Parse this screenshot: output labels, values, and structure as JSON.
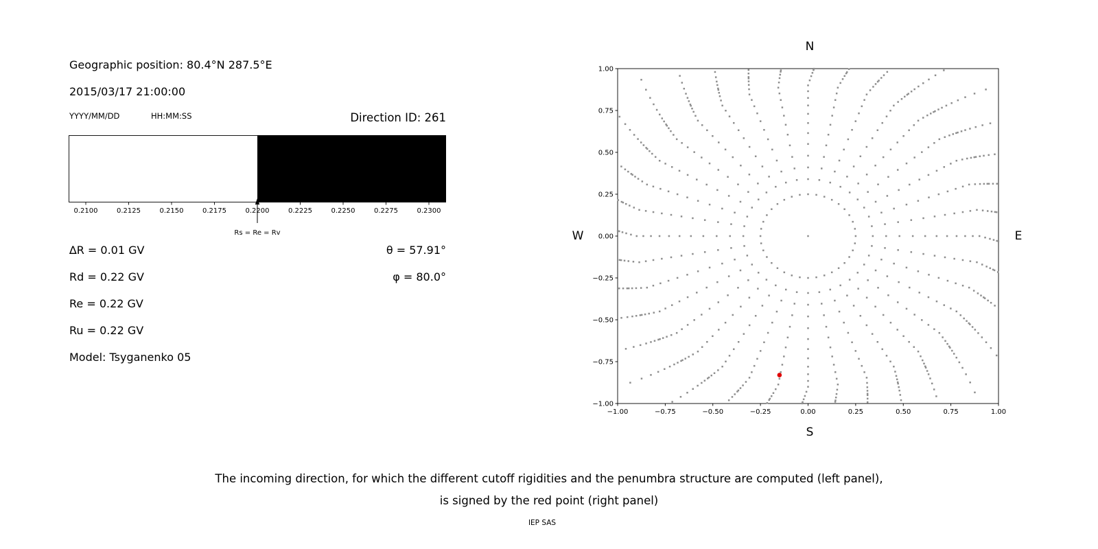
{
  "left_panel": {
    "geo_position": "Geographic position: 80.4°N 287.5°E",
    "datetime": "2015/03/17 21:00:00",
    "date_format_label": "YYYY/MM/DD",
    "time_format_label": "HH:MM:SS",
    "direction_id_label": "Direction ID: 261",
    "params": [
      "∆R = 0.01 GV",
      "Rd = 0.22 GV",
      "Re = 0.22 GV",
      "Ru = 0.22 GV",
      "Model: Tsyganenko 05"
    ],
    "theta_label": "θ = 57.91°",
    "phi_label": "φ = 80.0°"
  },
  "caption": {
    "line1": "The incoming direction, for which the different cutoff rigidities and the penumbra structure are computed (left panel),",
    "line2": "is signed by the red point (right panel)",
    "credit": "IEP SAS"
  },
  "chart_data": [
    {
      "type": "bar",
      "name": "penumbra-structure",
      "x_range": [
        0.209,
        0.231
      ],
      "ticks": [
        0.21,
        0.2125,
        0.215,
        0.2175,
        0.22,
        0.2225,
        0.225,
        0.2275,
        0.23
      ],
      "tick_labels": [
        "0.2100",
        "0.2125",
        "0.2150",
        "0.2175",
        "0.2200",
        "0.2225",
        "0.2250",
        "0.2275",
        "0.2300"
      ],
      "white_region": [
        0.209,
        0.22
      ],
      "black_region": [
        0.22,
        0.231
      ],
      "annotation": {
        "label": "Rs = Re = Rv",
        "x": 0.22
      },
      "colors": {
        "allowed": "#ffffff",
        "forbidden": "#000000"
      }
    },
    {
      "type": "scatter",
      "name": "asymptotic-directions",
      "compass": {
        "top": "N",
        "bottom": "S",
        "left": "W",
        "right": "E"
      },
      "xlim": [
        -1,
        1
      ],
      "ylim": [
        -1,
        1
      ],
      "xticks": [
        -1,
        -0.75,
        -0.5,
        -0.25,
        0,
        0.25,
        0.5,
        0.75,
        1
      ],
      "xtick_labels": [
        "−1.00",
        "−0.75",
        "−0.50",
        "−0.25",
        "0.00",
        "0.25",
        "0.50",
        "0.75",
        "1.00"
      ],
      "yticks": [
        1,
        0.75,
        0.5,
        0.25,
        0,
        -0.25,
        -0.5,
        -0.75,
        -1
      ],
      "ytick_labels": [
        "1.00",
        "0.75",
        "0.50",
        "0.25",
        "0.00",
        "−0.25",
        "−0.50",
        "−0.75",
        "−1.00"
      ],
      "spokes": {
        "azimuth_start_deg": 0,
        "azimuth_step_deg": 10,
        "azimuth_count": 36,
        "radii": [
          0.25,
          0.34,
          0.41,
          0.48,
          0.55,
          0.615,
          0.675,
          0.73,
          0.78,
          0.825,
          0.865,
          0.9,
          0.93,
          0.955,
          0.975,
          0.992,
          1.0,
          1.02,
          1.04,
          1.065,
          1.095,
          1.13,
          1.17,
          1.22,
          1.28,
          1.35
        ],
        "end_curl_deg": 18
      },
      "center_point": [
        0,
        0
      ],
      "red_point": {
        "x": -0.15,
        "y": -0.83,
        "color": "#e00000"
      },
      "dot_color": "#8e8e8e"
    }
  ]
}
